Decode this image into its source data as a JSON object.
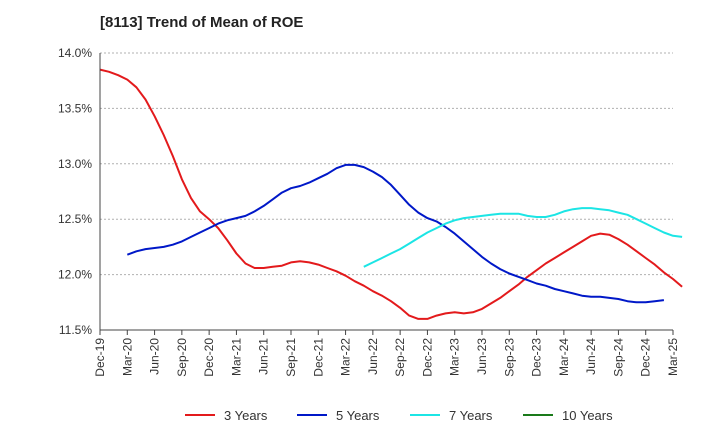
{
  "chart_data": {
    "type": "line",
    "title": "[8113]  Trend of Mean of ROE",
    "ylim": [
      11.5,
      14.0
    ],
    "y_ticks": [
      "11.5%",
      "12.0%",
      "12.5%",
      "13.0%",
      "13.5%",
      "14.0%"
    ],
    "x_ticks": [
      "Dec-19",
      "Mar-20",
      "Jun-20",
      "Sep-20",
      "Dec-20",
      "Mar-21",
      "Jun-21",
      "Sep-21",
      "Dec-21",
      "Mar-22",
      "Jun-22",
      "Sep-22",
      "Dec-22",
      "Mar-23",
      "Jun-23",
      "Sep-23",
      "Dec-23",
      "Mar-24",
      "Jun-24",
      "Sep-24",
      "Dec-24",
      "Mar-25"
    ],
    "x_note": "x values are months elapsed since Dec-19",
    "grid": "horizontal",
    "legend_position": "bottom",
    "series": [
      {
        "name": "3 Years",
        "color": "#e31a1c",
        "points": [
          [
            0,
            13.85
          ],
          [
            1,
            13.83
          ],
          [
            2,
            13.8
          ],
          [
            3,
            13.76
          ],
          [
            4,
            13.69
          ],
          [
            5,
            13.58
          ],
          [
            6,
            13.43
          ],
          [
            7,
            13.26
          ],
          [
            8,
            13.07
          ],
          [
            9,
            12.86
          ],
          [
            10,
            12.69
          ],
          [
            11,
            12.57
          ],
          [
            12,
            12.5
          ],
          [
            13,
            12.42
          ],
          [
            14,
            12.31
          ],
          [
            15,
            12.19
          ],
          [
            16,
            12.1
          ],
          [
            17,
            12.06
          ],
          [
            18,
            12.06
          ],
          [
            19,
            12.07
          ],
          [
            20,
            12.08
          ],
          [
            21,
            12.11
          ],
          [
            22,
            12.12
          ],
          [
            23,
            12.11
          ],
          [
            24,
            12.09
          ],
          [
            25,
            12.06
          ],
          [
            26,
            12.03
          ],
          [
            27,
            11.99
          ],
          [
            28,
            11.94
          ],
          [
            29,
            11.9
          ],
          [
            30,
            11.85
          ],
          [
            31,
            11.81
          ],
          [
            32,
            11.76
          ],
          [
            33,
            11.7
          ],
          [
            34,
            11.63
          ],
          [
            35,
            11.6
          ],
          [
            36,
            11.6
          ],
          [
            37,
            11.63
          ],
          [
            38,
            11.65
          ],
          [
            39,
            11.66
          ],
          [
            40,
            11.65
          ],
          [
            41,
            11.66
          ],
          [
            42,
            11.69
          ],
          [
            43,
            11.74
          ],
          [
            44,
            11.79
          ],
          [
            45,
            11.85
          ],
          [
            46,
            11.91
          ],
          [
            47,
            11.98
          ],
          [
            48,
            12.04
          ],
          [
            49,
            12.1
          ],
          [
            50,
            12.15
          ],
          [
            51,
            12.2
          ],
          [
            52,
            12.25
          ],
          [
            53,
            12.3
          ],
          [
            54,
            12.35
          ],
          [
            55,
            12.37
          ],
          [
            56,
            12.36
          ],
          [
            57,
            12.32
          ],
          [
            58,
            12.27
          ],
          [
            59,
            12.21
          ],
          [
            60,
            12.15
          ],
          [
            61,
            12.09
          ],
          [
            62,
            12.02
          ],
          [
            63,
            11.96
          ],
          [
            64,
            11.89
          ]
        ]
      },
      {
        "name": "5 Years",
        "color": "#0018c8",
        "points": [
          [
            3,
            12.18
          ],
          [
            4,
            12.21
          ],
          [
            5,
            12.23
          ],
          [
            6,
            12.24
          ],
          [
            7,
            12.25
          ],
          [
            8,
            12.27
          ],
          [
            9,
            12.3
          ],
          [
            10,
            12.34
          ],
          [
            11,
            12.38
          ],
          [
            12,
            12.42
          ],
          [
            13,
            12.46
          ],
          [
            14,
            12.49
          ],
          [
            15,
            12.51
          ],
          [
            16,
            12.53
          ],
          [
            17,
            12.57
          ],
          [
            18,
            12.62
          ],
          [
            19,
            12.68
          ],
          [
            20,
            12.74
          ],
          [
            21,
            12.78
          ],
          [
            22,
            12.8
          ],
          [
            23,
            12.83
          ],
          [
            24,
            12.87
          ],
          [
            25,
            12.91
          ],
          [
            26,
            12.96
          ],
          [
            27,
            12.99
          ],
          [
            28,
            12.99
          ],
          [
            29,
            12.97
          ],
          [
            30,
            12.93
          ],
          [
            31,
            12.88
          ],
          [
            32,
            12.81
          ],
          [
            33,
            12.72
          ],
          [
            34,
            12.63
          ],
          [
            35,
            12.56
          ],
          [
            36,
            12.51
          ],
          [
            37,
            12.48
          ],
          [
            38,
            12.43
          ],
          [
            39,
            12.37
          ],
          [
            40,
            12.3
          ],
          [
            41,
            12.23
          ],
          [
            42,
            12.16
          ],
          [
            43,
            12.1
          ],
          [
            44,
            12.05
          ],
          [
            45,
            12.01
          ],
          [
            46,
            11.98
          ],
          [
            47,
            11.95
          ],
          [
            48,
            11.92
          ],
          [
            49,
            11.9
          ],
          [
            50,
            11.87
          ],
          [
            51,
            11.85
          ],
          [
            52,
            11.83
          ],
          [
            53,
            11.81
          ],
          [
            54,
            11.8
          ],
          [
            55,
            11.8
          ],
          [
            56,
            11.79
          ],
          [
            57,
            11.78
          ],
          [
            58,
            11.76
          ],
          [
            59,
            11.75
          ],
          [
            60,
            11.75
          ],
          [
            61,
            11.76
          ],
          [
            62,
            11.77
          ]
        ]
      },
      {
        "name": "7 Years",
        "color": "#1ce5e5",
        "points": [
          [
            29,
            12.07
          ],
          [
            30,
            12.11
          ],
          [
            31,
            12.15
          ],
          [
            32,
            12.19
          ],
          [
            33,
            12.23
          ],
          [
            34,
            12.28
          ],
          [
            35,
            12.33
          ],
          [
            36,
            12.38
          ],
          [
            37,
            12.42
          ],
          [
            38,
            12.46
          ],
          [
            39,
            12.49
          ],
          [
            40,
            12.51
          ],
          [
            41,
            12.52
          ],
          [
            42,
            12.53
          ],
          [
            43,
            12.54
          ],
          [
            44,
            12.55
          ],
          [
            45,
            12.55
          ],
          [
            46,
            12.55
          ],
          [
            47,
            12.53
          ],
          [
            48,
            12.52
          ],
          [
            49,
            12.52
          ],
          [
            50,
            12.54
          ],
          [
            51,
            12.57
          ],
          [
            52,
            12.59
          ],
          [
            53,
            12.6
          ],
          [
            54,
            12.6
          ],
          [
            55,
            12.59
          ],
          [
            56,
            12.58
          ],
          [
            57,
            12.56
          ],
          [
            58,
            12.54
          ],
          [
            59,
            12.5
          ],
          [
            60,
            12.46
          ],
          [
            61,
            12.42
          ],
          [
            62,
            12.38
          ],
          [
            63,
            12.35
          ],
          [
            64,
            12.34
          ]
        ]
      },
      {
        "name": "10 Years",
        "color": "#1a7a1a",
        "points": []
      }
    ]
  }
}
